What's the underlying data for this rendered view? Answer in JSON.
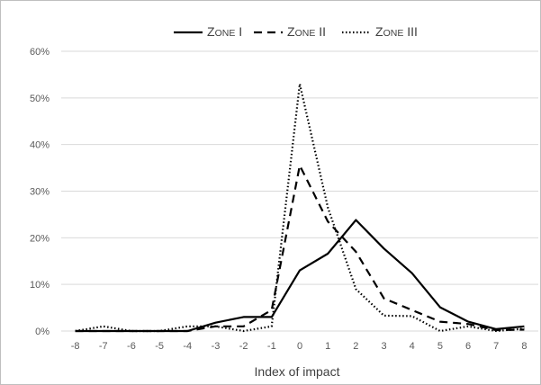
{
  "chart_data": {
    "type": "line",
    "xlabel": "Index of impact",
    "ylabel": "",
    "x": [
      -8,
      -7,
      -6,
      -5,
      -4,
      -3,
      -2,
      -1,
      0,
      1,
      2,
      3,
      4,
      5,
      6,
      7,
      8
    ],
    "ylim": [
      0,
      60
    ],
    "yticks": [
      "0%",
      "10%",
      "20%",
      "30%",
      "40%",
      "50%",
      "60%"
    ],
    "xticks": [
      "-8",
      "-7",
      "-6",
      "-5",
      "-4",
      "-3",
      "-2",
      "-1",
      "0",
      "1",
      "2",
      "3",
      "4",
      "5",
      "6",
      "7",
      "8"
    ],
    "grid": "horizontal",
    "legend": "top-center",
    "series": [
      {
        "name": "Zone I",
        "style": "solid",
        "color": "#000000",
        "values": [
          0,
          0,
          0,
          0,
          0,
          1.8,
          3,
          3,
          13,
          16.6,
          23.8,
          17.7,
          12.4,
          5.1,
          2,
          0.4,
          1
        ]
      },
      {
        "name": "Zone II",
        "style": "dashed",
        "color": "#000000",
        "values": [
          0,
          0,
          0,
          0,
          0,
          1,
          1,
          4.5,
          35.5,
          23.5,
          17,
          7,
          4.5,
          2,
          1.5,
          0.2,
          0.3
        ]
      },
      {
        "name": "Zone III",
        "style": "dotted",
        "color": "#000000",
        "values": [
          0,
          1,
          0,
          0,
          1,
          1,
          0,
          1,
          53,
          26.5,
          9,
          3.3,
          3.2,
          0,
          1,
          0,
          0.5
        ]
      }
    ]
  }
}
